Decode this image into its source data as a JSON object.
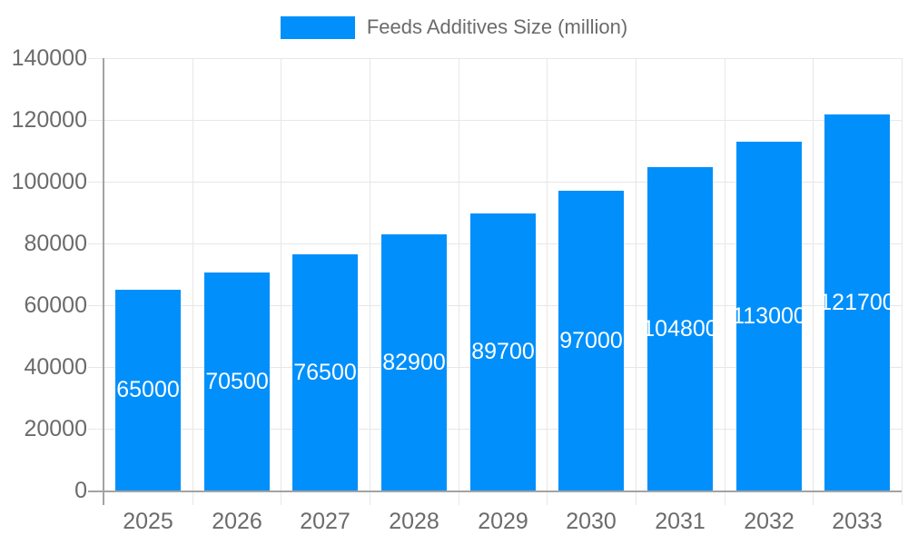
{
  "chart_data": {
    "type": "bar",
    "title": "",
    "legend_position": "top",
    "categories": [
      "2025",
      "2026",
      "2027",
      "2028",
      "2029",
      "2030",
      "2031",
      "2032",
      "2033"
    ],
    "series": [
      {
        "name": "Feeds Additives Size (million)",
        "values": [
          65000,
          70500,
          76500,
          82900,
          89700,
          97000,
          104800,
          113000,
          121700
        ]
      }
    ],
    "value_labels": [
      "65000",
      "70500",
      "76500",
      "82900",
      "89700",
      "97000",
      "104800",
      "113000",
      "121700"
    ],
    "xlabel": "",
    "ylabel": "",
    "ylim": [
      0,
      140000
    ],
    "ytick_step": 20000,
    "yticks": [
      "0",
      "20000",
      "40000",
      "60000",
      "80000",
      "100000",
      "120000",
      "140000"
    ],
    "grid": true
  },
  "colors": {
    "bar": "#008ffb",
    "grid": "#e7e7e7",
    "axis": "#a3a3a3",
    "tick_text": "#6b6b6b",
    "legend_text": "#6b6b6b",
    "value_text": "#ffffff",
    "background": "#ffffff"
  }
}
